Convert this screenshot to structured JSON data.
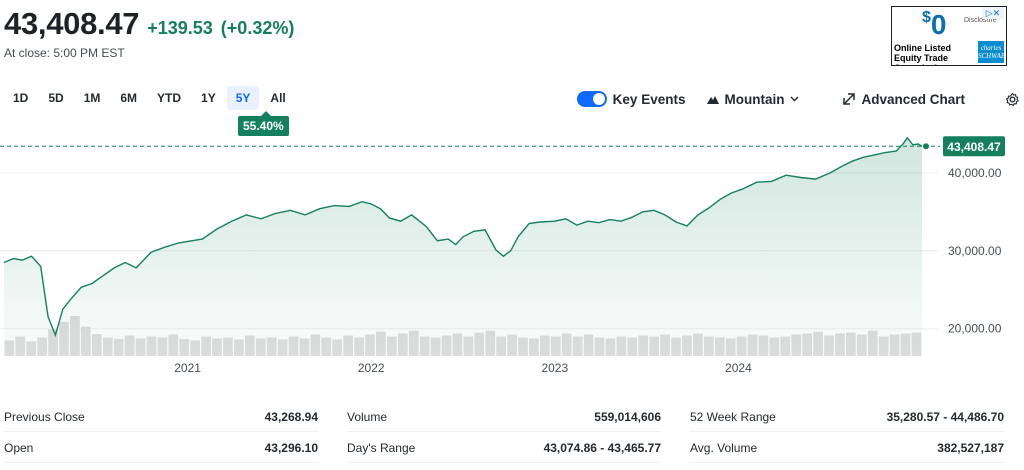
{
  "quote": {
    "price": "43,408.47",
    "change": "+139.53",
    "change_pct": "(+0.32%)",
    "at_close": "At close: 5:00 PM EST",
    "accent_color": "#14805e"
  },
  "ad": {
    "zero": "0",
    "dollar": "$",
    "disclosure": "Disclosure",
    "text": "Online Listed Equity Trade Commissions.",
    "logo": "charles SCHWAB",
    "close_icon": "ad-choices-icon"
  },
  "toolbar": {
    "ranges": [
      "1D",
      "5D",
      "1M",
      "6M",
      "YTD",
      "1Y",
      "5Y",
      "All"
    ],
    "active_range": "5Y",
    "range_change": "55.40%",
    "key_events": "Key Events",
    "chart_type": "Mountain",
    "advanced_chart": "Advanced Chart",
    "icons": [
      "toggle-icon",
      "mountain-icon",
      "chevron-down-icon",
      "expand-icon",
      "gear-icon"
    ]
  },
  "chart_data": {
    "type": "area",
    "line_color": "#14805e",
    "x_ticks": [
      "2021",
      "2022",
      "2023",
      "2024"
    ],
    "y_ticks": [
      "20,000.00",
      "30,000.00",
      "40,000.00"
    ],
    "y_tick_values": [
      20000,
      30000,
      40000
    ],
    "last_value_label": "43,408.47",
    "reference_value": 43408.47,
    "ylim": [
      16500,
      45500
    ],
    "xlim": [
      2020.0,
      2025.0
    ],
    "grid": true,
    "series": [
      {
        "x": [
          2020.0,
          2020.05,
          2020.1,
          2020.15,
          2020.2,
          2020.24,
          2020.28,
          2020.32,
          2020.36,
          2020.42,
          2020.48,
          2020.54,
          2020.6,
          2020.66,
          2020.72,
          2020.8,
          2020.88,
          2020.95,
          2021.0,
          2021.08,
          2021.16,
          2021.24,
          2021.32,
          2021.4,
          2021.48,
          2021.56,
          2021.64,
          2021.72,
          2021.8,
          2021.88,
          2021.95,
          2022.0,
          2022.05,
          2022.1,
          2022.16,
          2022.22,
          2022.3,
          2022.36,
          2022.42,
          2022.46,
          2022.5,
          2022.56,
          2022.62,
          2022.68,
          2022.72,
          2022.76,
          2022.8,
          2022.86,
          2022.92,
          2023.0,
          2023.06,
          2023.12,
          2023.18,
          2023.24,
          2023.3,
          2023.36,
          2023.42,
          2023.48,
          2023.54,
          2023.6,
          2023.66,
          2023.72,
          2023.78,
          2023.84,
          2023.9,
          2023.96,
          2024.02,
          2024.1,
          2024.18,
          2024.26,
          2024.34,
          2024.42,
          2024.5,
          2024.56,
          2024.62,
          2024.68,
          2024.74,
          2024.8,
          2024.86,
          2024.9,
          2024.92,
          2024.95,
          2024.98,
          2025.0
        ],
        "values": [
          28500,
          29000,
          28800,
          29300,
          28000,
          21500,
          19200,
          22500,
          23700,
          25300,
          25800,
          26800,
          27800,
          28500,
          27800,
          29800,
          30500,
          31000,
          31200,
          31500,
          32800,
          33800,
          34600,
          34100,
          34800,
          35200,
          34600,
          35400,
          35800,
          35700,
          36300,
          36000,
          35400,
          34200,
          33800,
          34600,
          33100,
          31300,
          31500,
          30800,
          31800,
          32500,
          32700,
          30100,
          29300,
          30000,
          31800,
          33500,
          33700,
          33800,
          34100,
          33300,
          33800,
          33600,
          34000,
          33800,
          34300,
          35000,
          35200,
          34600,
          33700,
          33200,
          34600,
          35500,
          36600,
          37400,
          37900,
          38800,
          38900,
          39700,
          39400,
          39200,
          40000,
          40800,
          41500,
          42000,
          42300,
          42600,
          42800,
          43800,
          44500,
          43600,
          43700,
          43408.47
        ]
      }
    ],
    "volume": [
      32,
      40,
      30,
      38,
      55,
      70,
      82,
      60,
      45,
      38,
      35,
      42,
      36,
      40,
      38,
      44,
      35,
      32,
      40,
      36,
      38,
      34,
      42,
      36,
      38,
      34,
      40,
      36,
      44,
      38,
      34,
      42,
      38,
      44,
      50,
      40,
      46,
      52,
      40,
      38,
      42,
      46,
      40,
      48,
      52,
      40,
      44,
      38,
      36,
      42,
      40,
      46,
      40,
      44,
      38,
      36,
      40,
      38,
      42,
      40,
      44,
      38,
      42,
      46,
      40,
      38,
      36,
      40,
      44,
      42,
      38,
      40,
      44,
      46,
      50,
      42,
      46,
      48,
      44,
      52,
      40,
      44,
      46,
      48
    ]
  },
  "stats": [
    [
      {
        "label": "Previous Close",
        "value": "43,268.94"
      },
      {
        "label": "Open",
        "value": "43,296.10"
      }
    ],
    [
      {
        "label": "Volume",
        "value": "559,014,606"
      },
      {
        "label": "Day's Range",
        "value": "43,074.86 - 43,465.77"
      }
    ],
    [
      {
        "label": "52 Week Range",
        "value": "35,280.57 - 44,486.70"
      },
      {
        "label": "Avg. Volume",
        "value": "382,527,187"
      }
    ]
  ]
}
